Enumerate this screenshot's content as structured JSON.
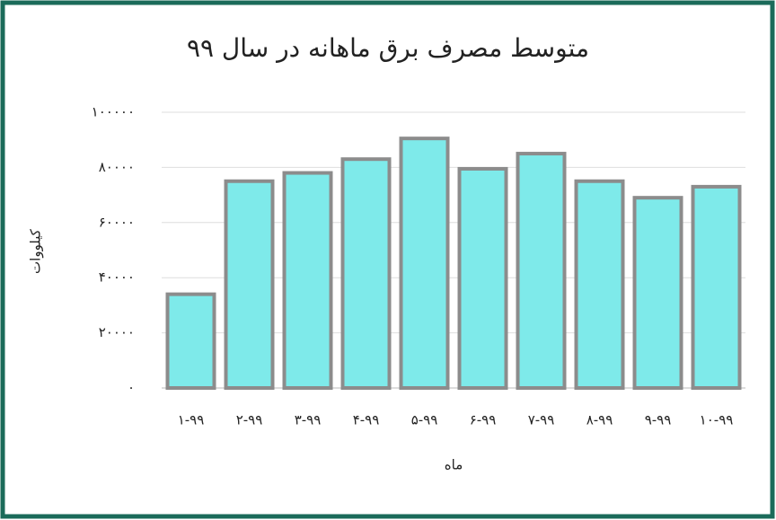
{
  "chart_data": {
    "type": "bar",
    "title": "متوسط مصرف برق ماهانه در سال ۹۹",
    "x_label": "ماه",
    "y_label": "کیلووات",
    "categories": [
      "۱-۹۹",
      "۲-۹۹",
      "۳-۹۹",
      "۴-۹۹",
      "۵-۹۹",
      "۶-۹۹",
      "۷-۹۹",
      "۸-۹۹",
      "۹-۹۹",
      "۱۰-۹۹"
    ],
    "values": [
      34000,
      75000,
      78000,
      83000,
      90500,
      79500,
      85000,
      75000,
      69000,
      73000
    ],
    "color": "#7eeaea",
    "ylim": [
      0,
      100000
    ],
    "yticks": [
      {
        "value": 0,
        "label": "۰"
      },
      {
        "value": 20000,
        "label": "۲۰۰۰۰"
      },
      {
        "value": 40000,
        "label": "۴۰۰۰۰"
      },
      {
        "value": 60000,
        "label": "۶۰۰۰۰"
      },
      {
        "value": 80000,
        "label": "۸۰۰۰۰"
      },
      {
        "value": 100000,
        "label": "۱۰۰۰۰۰"
      }
    ],
    "grid": true
  }
}
